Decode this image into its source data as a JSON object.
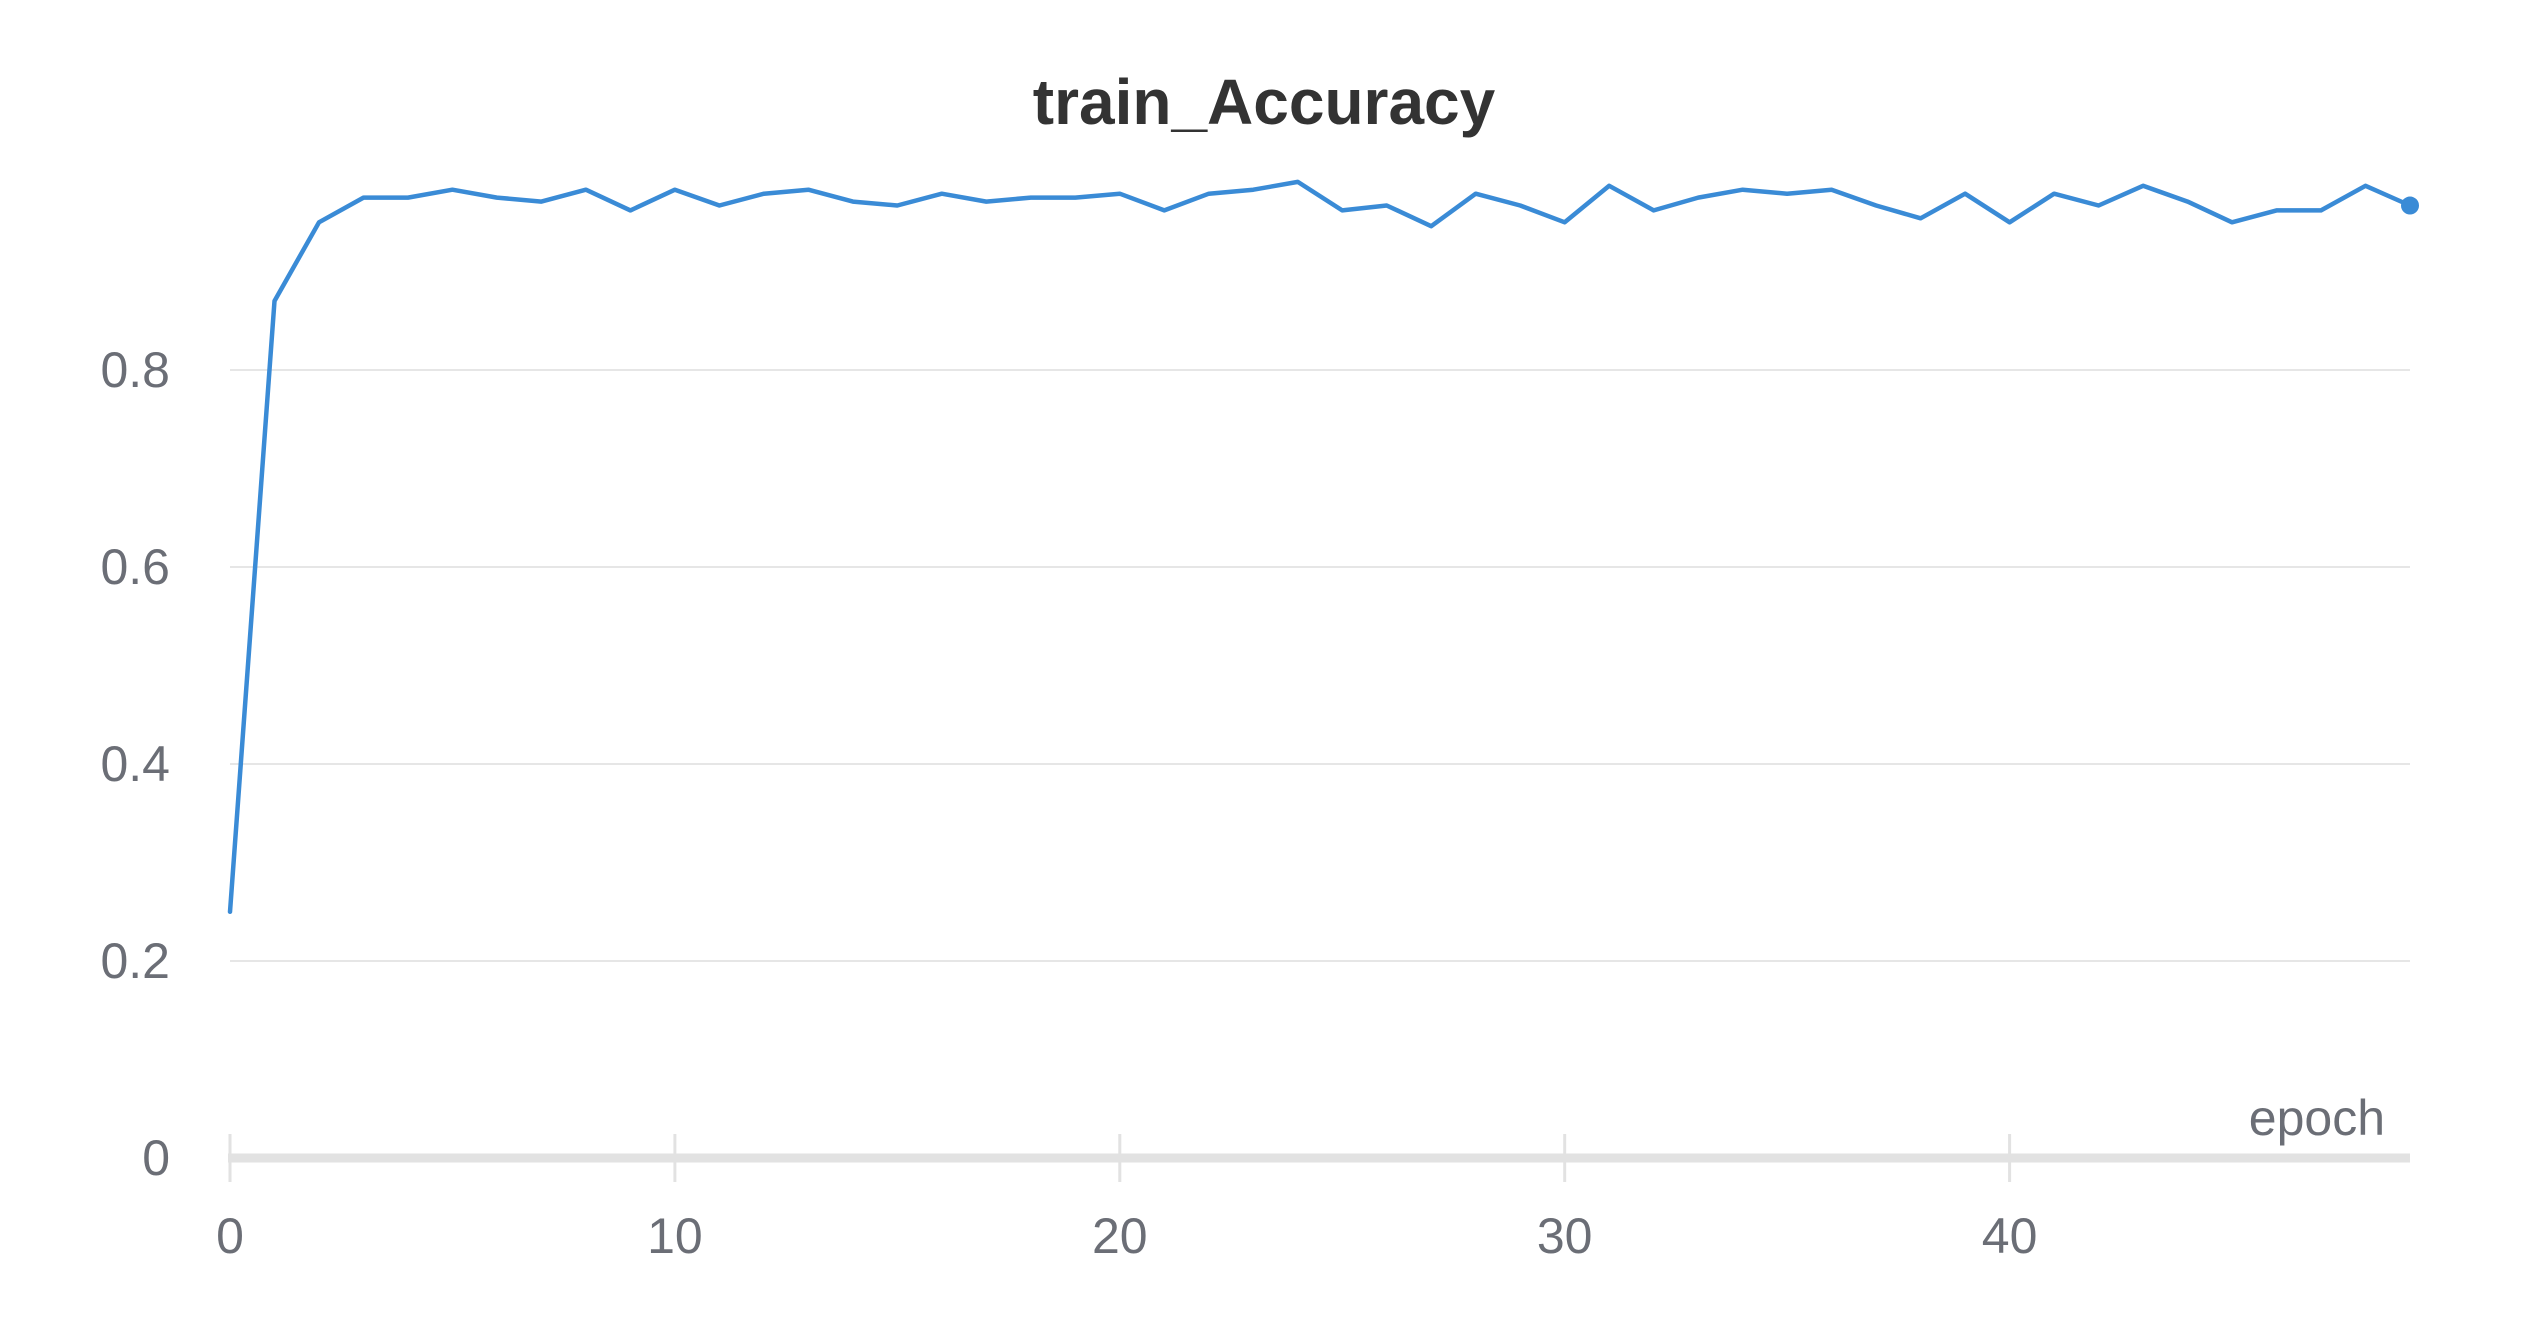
{
  "chart_data": {
    "type": "line",
    "title": "train_Accuracy",
    "xlabel": "epoch",
    "ylabel": "",
    "xlim": [
      0,
      49
    ],
    "ylim": [
      0,
      1.0
    ],
    "x_ticks": [
      0,
      10,
      20,
      30,
      40
    ],
    "x_tick_labels": [
      "0",
      "10",
      "20",
      "30",
      "40"
    ],
    "y_ticks": [
      0,
      0.2,
      0.4,
      0.6,
      0.8
    ],
    "y_tick_labels": [
      "0",
      "0.2",
      "0.4",
      "0.6",
      "0.8"
    ],
    "grid": true,
    "legend": "none",
    "series": [
      {
        "color": "#3a8bd6",
        "end_marker": true,
        "x": [
          0,
          1,
          2,
          3,
          4,
          5,
          6,
          7,
          8,
          9,
          10,
          11,
          12,
          13,
          14,
          15,
          16,
          17,
          18,
          19,
          20,
          21,
          22,
          23,
          24,
          25,
          26,
          27,
          28,
          29,
          30,
          31,
          32,
          33,
          34,
          35,
          36,
          37,
          38,
          39,
          40,
          41,
          42,
          43,
          44,
          45,
          46,
          47,
          48,
          49
        ],
        "y": [
          0.25,
          0.87,
          0.95,
          0.975,
          0.975,
          0.983,
          0.975,
          0.971,
          0.983,
          0.962,
          0.983,
          0.967,
          0.979,
          0.983,
          0.971,
          0.967,
          0.979,
          0.971,
          0.975,
          0.975,
          0.979,
          0.962,
          0.979,
          0.983,
          0.991,
          0.962,
          0.967,
          0.946,
          0.979,
          0.967,
          0.95,
          0.987,
          0.962,
          0.975,
          0.983,
          0.979,
          0.983,
          0.967,
          0.954,
          0.979,
          0.95,
          0.979,
          0.967,
          0.987,
          0.971,
          0.95,
          0.962,
          0.962,
          0.987,
          0.967
        ]
      }
    ]
  }
}
